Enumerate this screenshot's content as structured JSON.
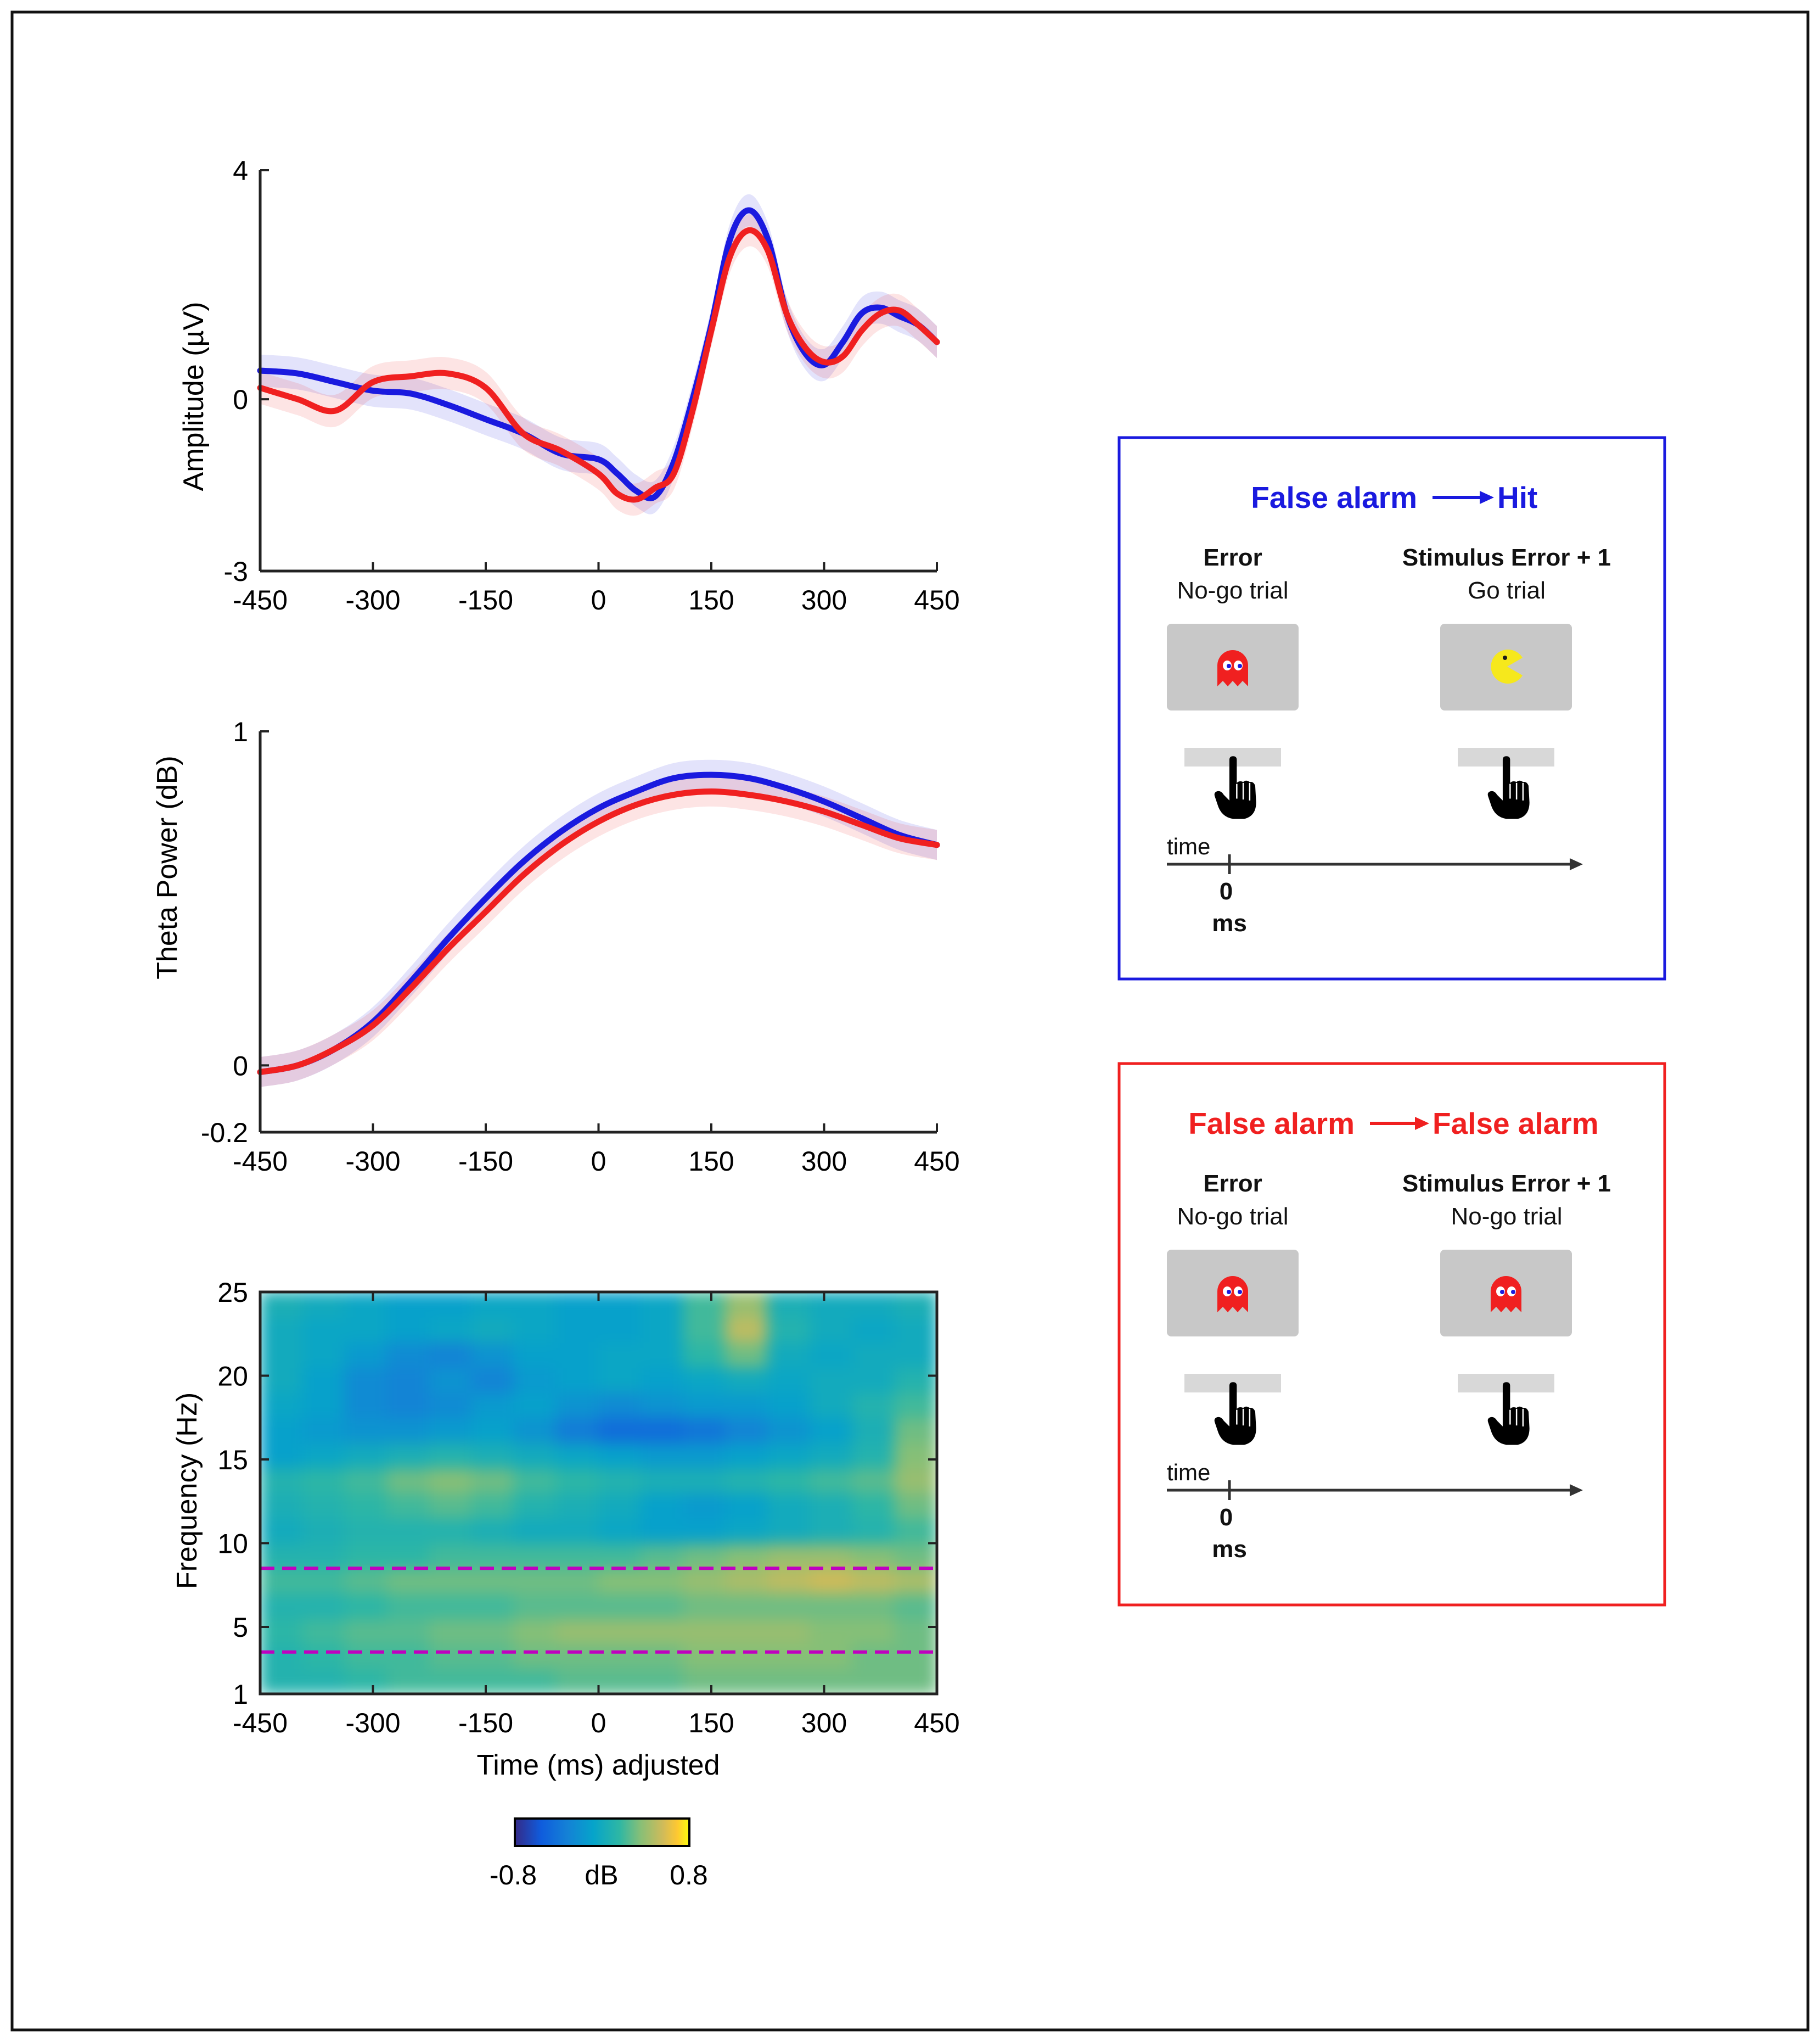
{
  "colors": {
    "blue": "#1a1adf",
    "red": "#f02020",
    "frame": "#222222",
    "dash": "#c000c0"
  },
  "chart_data": [
    {
      "type": "line",
      "ylabel": "Amplitude (µV)",
      "xlim": [
        -450,
        450
      ],
      "ylim": [
        -3,
        4
      ],
      "xticks": [
        -450,
        -300,
        -150,
        0,
        150,
        300,
        450
      ],
      "yticks": [
        -3,
        0,
        4
      ],
      "x": [
        -450,
        -400,
        -350,
        -300,
        -250,
        -200,
        -150,
        -100,
        -50,
        0,
        25,
        50,
        75,
        100,
        125,
        150,
        175,
        200,
        225,
        250,
        275,
        300,
        325,
        350,
        375,
        400,
        425,
        450
      ],
      "series": [
        {
          "name": "False alarm → Hit",
          "color": "blue",
          "values": [
            0.5,
            0.45,
            0.3,
            0.15,
            0.1,
            -0.1,
            -0.35,
            -0.6,
            -0.95,
            -1.05,
            -1.3,
            -1.6,
            -1.7,
            -1.1,
            0.0,
            1.3,
            2.8,
            3.3,
            2.8,
            1.5,
            0.8,
            0.6,
            1.0,
            1.5,
            1.6,
            1.45,
            1.3,
            1.0
          ]
        },
        {
          "name": "False alarm → False alarm",
          "color": "red",
          "values": [
            0.2,
            0.0,
            -0.2,
            0.3,
            0.4,
            0.45,
            0.2,
            -0.6,
            -0.9,
            -1.3,
            -1.65,
            -1.75,
            -1.55,
            -1.3,
            -0.2,
            1.2,
            2.5,
            2.95,
            2.6,
            1.5,
            0.9,
            0.65,
            0.75,
            1.2,
            1.5,
            1.55,
            1.3,
            1.0
          ]
        }
      ]
    },
    {
      "type": "line",
      "ylabel": "Theta Power (dB)",
      "xlim": [
        -450,
        450
      ],
      "ylim": [
        -0.2,
        1
      ],
      "xticks": [
        -450,
        -300,
        -150,
        0,
        150,
        300,
        450
      ],
      "yticks": [
        -0.2,
        0,
        1
      ],
      "x": [
        -450,
        -400,
        -350,
        -300,
        -250,
        -200,
        -150,
        -100,
        -50,
        0,
        50,
        100,
        150,
        200,
        250,
        300,
        350,
        400,
        450
      ],
      "series": [
        {
          "name": "False alarm → Hit",
          "color": "blue",
          "values": [
            -0.02,
            0.0,
            0.05,
            0.13,
            0.25,
            0.38,
            0.5,
            0.61,
            0.7,
            0.77,
            0.82,
            0.86,
            0.87,
            0.86,
            0.83,
            0.79,
            0.74,
            0.69,
            0.66
          ]
        },
        {
          "name": "False alarm → False alarm",
          "color": "red",
          "values": [
            -0.02,
            0.0,
            0.05,
            0.12,
            0.23,
            0.35,
            0.46,
            0.57,
            0.66,
            0.73,
            0.78,
            0.81,
            0.82,
            0.81,
            0.79,
            0.76,
            0.72,
            0.68,
            0.66
          ]
        }
      ]
    },
    {
      "type": "heatmap",
      "xlabel": "Time (ms) adjusted",
      "ylabel": "Frequency (Hz)",
      "xlim": [
        -450,
        450
      ],
      "ylim": [
        1,
        25
      ],
      "xticks": [
        -450,
        -300,
        -150,
        0,
        150,
        300,
        450
      ],
      "yticks": [
        1,
        5,
        10,
        15,
        20,
        25
      ],
      "x": [
        -450,
        -390,
        -330,
        -270,
        -210,
        -150,
        -90,
        -30,
        30,
        90,
        150,
        210,
        270,
        330,
        390,
        450
      ],
      "y": [
        1,
        2.6,
        4.2,
        5.8,
        7.4,
        9,
        10.6,
        12.2,
        13.8,
        15.4,
        17,
        18.6,
        20.2,
        21.8,
        23.4,
        25
      ],
      "z": [
        [
          0.1,
          0.1,
          0.15,
          0.2,
          0.2,
          0.2,
          0.2,
          0.25,
          0.25,
          0.25,
          0.3,
          0.3,
          0.3,
          0.3,
          0.3,
          0.3
        ],
        [
          0.1,
          0.15,
          0.2,
          0.2,
          0.25,
          0.25,
          0.3,
          0.3,
          0.3,
          0.3,
          0.35,
          0.35,
          0.35,
          0.35,
          0.3,
          0.3
        ],
        [
          0.15,
          0.2,
          0.25,
          0.25,
          0.3,
          0.3,
          0.35,
          0.4,
          0.4,
          0.4,
          0.4,
          0.4,
          0.4,
          0.35,
          0.35,
          0.3
        ],
        [
          0.1,
          0.1,
          0.15,
          0.2,
          0.2,
          0.2,
          0.25,
          0.25,
          0.25,
          0.25,
          0.3,
          0.3,
          0.3,
          0.3,
          0.3,
          0.25
        ],
        [
          0.2,
          0.2,
          0.25,
          0.3,
          0.3,
          0.3,
          0.3,
          0.3,
          0.35,
          0.35,
          0.4,
          0.45,
          0.5,
          0.55,
          0.5,
          0.45
        ],
        [
          0.1,
          0.1,
          0.15,
          0.15,
          0.2,
          0.2,
          0.2,
          0.2,
          0.2,
          0.25,
          0.3,
          0.35,
          0.4,
          0.4,
          0.35,
          0.3
        ],
        [
          0.0,
          0.05,
          0.1,
          0.1,
          0.1,
          0.05,
          0.0,
          0.0,
          -0.05,
          -0.1,
          -0.1,
          -0.05,
          0.0,
          0.05,
          0.1,
          0.2
        ],
        [
          0.05,
          0.1,
          0.15,
          0.2,
          0.25,
          0.2,
          0.1,
          0.05,
          0.0,
          -0.1,
          -0.15,
          -0.1,
          0.0,
          0.05,
          0.15,
          0.3
        ],
        [
          0.1,
          0.15,
          0.2,
          0.3,
          0.35,
          0.3,
          0.2,
          0.15,
          0.1,
          0.05,
          0.05,
          0.1,
          0.15,
          0.2,
          0.25,
          0.4
        ],
        [
          -0.1,
          -0.05,
          0.0,
          0.05,
          0.1,
          0.05,
          0.0,
          -0.05,
          -0.1,
          -0.15,
          -0.15,
          -0.1,
          -0.05,
          0.0,
          0.1,
          0.35
        ],
        [
          -0.1,
          -0.15,
          -0.2,
          -0.2,
          -0.15,
          -0.1,
          -0.2,
          -0.35,
          -0.45,
          -0.45,
          -0.4,
          -0.3,
          -0.2,
          -0.1,
          0.05,
          0.3
        ],
        [
          -0.05,
          -0.1,
          -0.25,
          -0.3,
          -0.25,
          -0.15,
          -0.1,
          -0.2,
          -0.25,
          -0.2,
          -0.15,
          -0.15,
          -0.1,
          0.0,
          0.1,
          0.2
        ],
        [
          0.0,
          -0.1,
          -0.25,
          -0.3,
          -0.2,
          -0.3,
          -0.15,
          -0.1,
          -0.05,
          -0.1,
          -0.05,
          0.0,
          -0.05,
          0.0,
          0.0,
          0.1
        ],
        [
          0.0,
          -0.05,
          -0.15,
          -0.25,
          -0.3,
          -0.2,
          -0.1,
          -0.1,
          -0.05,
          -0.05,
          0.15,
          0.3,
          0.0,
          -0.05,
          0.0,
          0.0
        ],
        [
          0.0,
          -0.05,
          -0.05,
          -0.1,
          -0.05,
          0.0,
          -0.05,
          -0.1,
          -0.1,
          -0.05,
          0.2,
          0.5,
          0.1,
          0.0,
          -0.05,
          0.0
        ],
        [
          0.05,
          0.0,
          -0.05,
          -0.1,
          -0.1,
          -0.05,
          -0.05,
          -0.1,
          -0.1,
          -0.05,
          0.2,
          0.4,
          0.05,
          0.0,
          0.0,
          0.05
        ]
      ],
      "hlines": [
        3.5,
        8.5
      ]
    }
  ],
  "colorbar": {
    "min_label": "-0.8",
    "unit_label": "dB",
    "max_label": "0.8",
    "min": -0.8,
    "max": 0.8
  },
  "panels": [
    {
      "title_left": "False alarm",
      "title_right": "Hit",
      "color": "blue",
      "left_heading": "Error",
      "left_sub": "No-go trial",
      "right_heading": "Stimulus Error + 1",
      "right_sub": "Go trial",
      "left_stimulus": "ghost",
      "right_stimulus": "pacman",
      "time_label": "time",
      "zero_label": "0",
      "ms_label": "ms"
    },
    {
      "title_left": "False alarm",
      "title_right": "False alarm",
      "color": "red",
      "left_heading": "Error",
      "left_sub": "No-go trial",
      "right_heading": "Stimulus Error + 1",
      "right_sub": "No-go trial",
      "left_stimulus": "ghost",
      "right_stimulus": "ghost",
      "time_label": "time",
      "zero_label": "0",
      "ms_label": "ms"
    }
  ]
}
